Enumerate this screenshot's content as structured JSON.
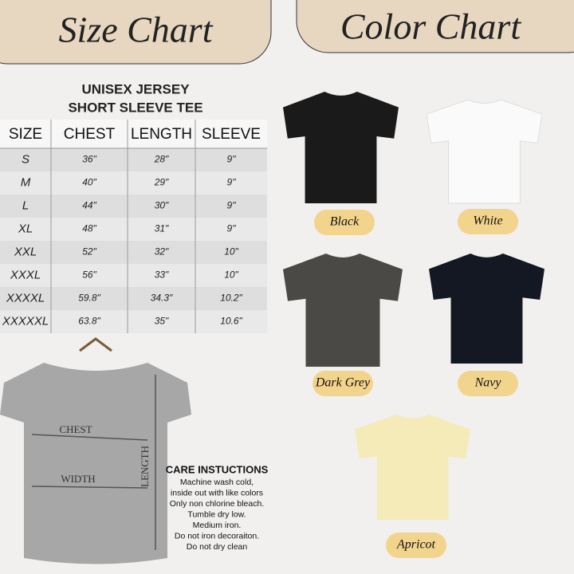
{
  "size_chart": {
    "heading": "Size Chart",
    "title_lines": [
      "UNISEX JERSEY",
      "SHORT SLEEVE TEE"
    ],
    "table": {
      "header": [
        "SIZE",
        "CHEST",
        "LENGTH",
        "SLEEVE"
      ],
      "rows": [
        [
          "S",
          "36\"",
          "28\"",
          "9\""
        ],
        [
          "M",
          "40\"",
          "29\"",
          "9\""
        ],
        [
          "L",
          "44\"",
          "30\"",
          "9\""
        ],
        [
          "XL",
          "48\"",
          "31\"",
          "9\""
        ],
        [
          "XXL",
          "52\"",
          "32\"",
          "10\""
        ],
        [
          "XXXL",
          "56\"",
          "33\"",
          "10\""
        ],
        [
          "XXXXL",
          "59.8\"",
          "34.3\"",
          "10.2\""
        ],
        [
          "XXXXXL",
          "63.8\"",
          "35\"",
          "10.6\""
        ]
      ]
    },
    "diagram": {
      "chest": "CHEST",
      "width": "WIDTH",
      "length": "LENGTH"
    },
    "care": {
      "title": "CARE INSTUCTIONS",
      "lines": [
        "Machine wash cold,",
        "inside out with like colors",
        "Only non chlorine bleach.",
        "Tumble dry low.",
        "Medium iron.",
        "Do not iron decoraiton.",
        "Do not dry clean"
      ]
    }
  },
  "color_chart": {
    "heading": "Color Chart",
    "colors": [
      {
        "name": "Black",
        "color": "#1a1a1a"
      },
      {
        "name": "White",
        "color": "#fafafa"
      },
      {
        "name": "Dark Grey",
        "color": "#4a4946"
      },
      {
        "name": "Navy",
        "color": "#141822"
      },
      {
        "name": "Apricot",
        "color": "#f4ebb9"
      }
    ]
  }
}
